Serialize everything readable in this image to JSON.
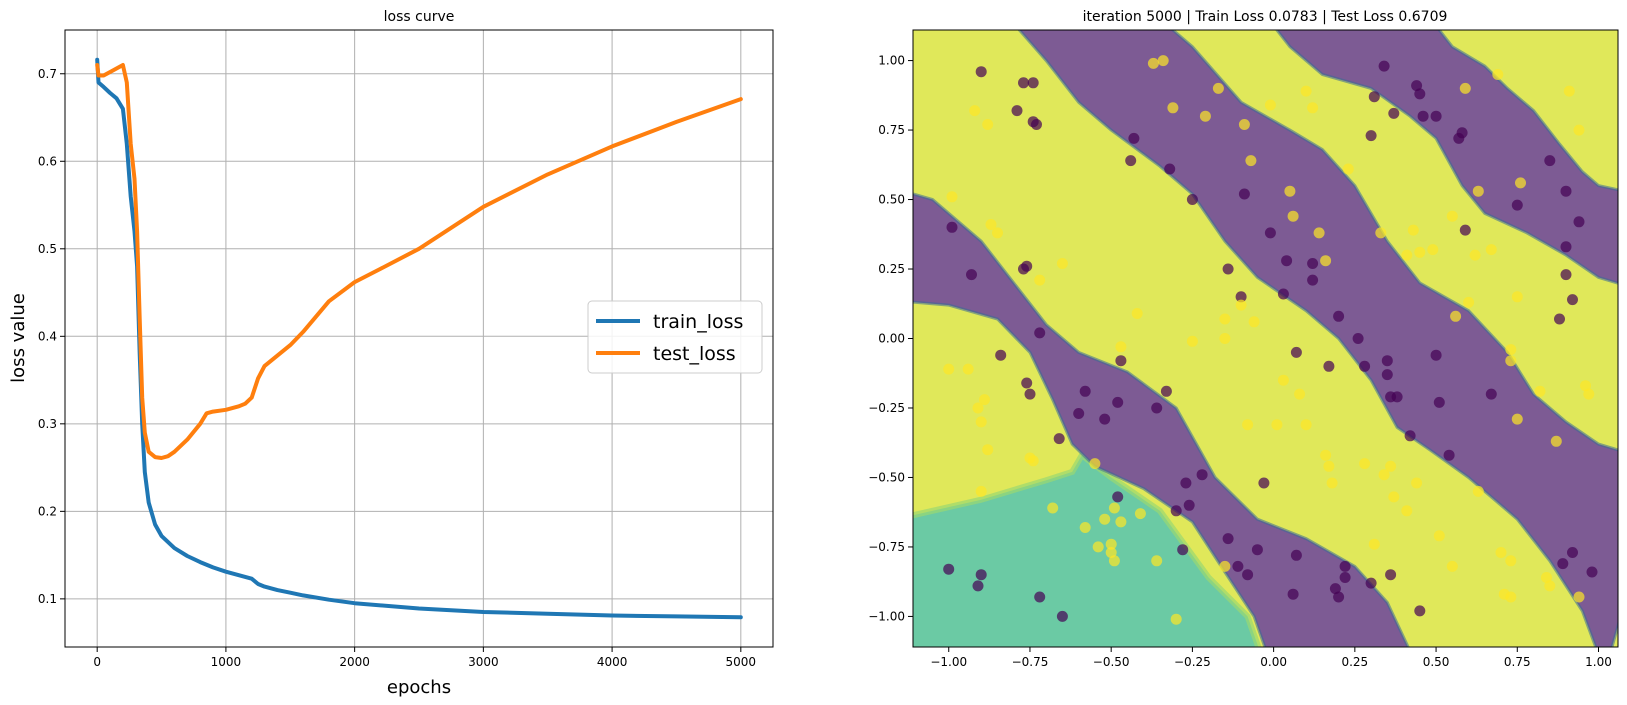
{
  "chart_data": [
    {
      "type": "line",
      "title": "loss curve",
      "xlabel": "epochs",
      "ylabel": "loss value",
      "xlim": [
        -250,
        5250
      ],
      "ylim": [
        0.045,
        0.75
      ],
      "xticks": [
        0,
        1000,
        2000,
        3000,
        4000,
        5000
      ],
      "yticks": [
        0.1,
        0.2,
        0.3,
        0.4,
        0.5,
        0.6,
        0.7
      ],
      "grid": true,
      "legend": "center-right",
      "series": [
        {
          "name": "train_loss",
          "color": "#1f77b4",
          "x": [
            0,
            10,
            50,
            100,
            150,
            200,
            230,
            260,
            290,
            310,
            330,
            350,
            370,
            400,
            450,
            500,
            600,
            700,
            800,
            900,
            1000,
            1100,
            1200,
            1250,
            1300,
            1400,
            1500,
            1600,
            1800,
            2000,
            2500,
            3000,
            3500,
            4000,
            4500,
            5000
          ],
          "y": [
            0.716,
            0.69,
            0.685,
            0.678,
            0.672,
            0.66,
            0.62,
            0.56,
            0.52,
            0.48,
            0.38,
            0.3,
            0.245,
            0.21,
            0.185,
            0.172,
            0.158,
            0.149,
            0.142,
            0.136,
            0.131,
            0.127,
            0.123,
            0.117,
            0.114,
            0.11,
            0.107,
            0.104,
            0.099,
            0.095,
            0.089,
            0.085,
            0.083,
            0.081,
            0.08,
            0.079
          ]
        },
        {
          "name": "test_loss",
          "color": "#ff7f0e",
          "x": [
            0,
            10,
            50,
            100,
            150,
            200,
            230,
            260,
            290,
            310,
            330,
            350,
            370,
            400,
            450,
            500,
            550,
            600,
            700,
            800,
            850,
            900,
            1000,
            1100,
            1150,
            1200,
            1250,
            1300,
            1400,
            1500,
            1600,
            1800,
            2000,
            2200,
            2500,
            3000,
            3500,
            4000,
            4500,
            5000
          ],
          "y": [
            0.71,
            0.698,
            0.698,
            0.702,
            0.706,
            0.71,
            0.69,
            0.62,
            0.58,
            0.52,
            0.42,
            0.33,
            0.29,
            0.268,
            0.262,
            0.261,
            0.263,
            0.268,
            0.282,
            0.3,
            0.312,
            0.314,
            0.316,
            0.32,
            0.323,
            0.33,
            0.352,
            0.366,
            0.378,
            0.39,
            0.405,
            0.44,
            0.462,
            0.477,
            0.5,
            0.548,
            0.585,
            0.617,
            0.645,
            0.671
          ]
        }
      ]
    },
    {
      "type": "scatter",
      "title": "iteration 5000 | Train Loss 0.0783 | Test Loss 0.6709",
      "xlabel": "",
      "ylabel": "",
      "xlim": [
        -1.11,
        1.06
      ],
      "ylim": [
        -1.11,
        1.11
      ],
      "xticks": [
        -1.0,
        -0.75,
        -0.5,
        -0.25,
        0.0,
        0.25,
        0.5,
        0.75,
        1.0
      ],
      "xtick_labels": [
        "−1.00",
        "−0.75",
        "−0.50",
        "−0.25",
        "0.00",
        "0.25",
        "0.50",
        "0.75",
        "1.00"
      ],
      "yticks": [
        -1.0,
        -0.75,
        -0.5,
        -0.25,
        0.0,
        0.25,
        0.5,
        0.75,
        1.0
      ],
      "ytick_labels": [
        "−1.00",
        "−0.75",
        "−0.50",
        "−0.25",
        "0.00",
        "0.25",
        "0.50",
        "0.75",
        "1.00"
      ],
      "grid": false,
      "region_colors": {
        "class_0": "#7d5b94",
        "class_1": "#e0e85a",
        "mid": "#6bcaa4",
        "edge_dark": "#3b6c96",
        "edge_mid": "#39b49b",
        "edge_light": "#9ad870"
      },
      "point_colors": {
        "class_0": "#440154",
        "class_1": "#fde725"
      },
      "point_alpha": 0.7,
      "points": [
        [
          -0.9,
          0.96,
          0
        ],
        [
          -0.77,
          0.92,
          0
        ],
        [
          -0.74,
          0.92,
          0
        ],
        [
          -0.79,
          0.82,
          0
        ],
        [
          -0.74,
          0.78,
          0
        ],
        [
          -0.73,
          0.77,
          0
        ],
        [
          -0.43,
          0.72,
          0
        ],
        [
          -0.44,
          0.64,
          0
        ],
        [
          -0.32,
          0.61,
          0
        ],
        [
          -0.25,
          0.5,
          0
        ],
        [
          0.31,
          0.87,
          0
        ],
        [
          0.34,
          0.98,
          0
        ],
        [
          0.3,
          0.73,
          0
        ],
        [
          0.37,
          0.81,
          0
        ],
        [
          0.44,
          0.91,
          0
        ],
        [
          0.45,
          0.88,
          0
        ],
        [
          0.46,
          0.8,
          0
        ],
        [
          0.5,
          0.8,
          0
        ],
        [
          0.57,
          0.72,
          0
        ],
        [
          0.58,
          0.74,
          0
        ],
        [
          0.59,
          0.39,
          0
        ],
        [
          0.75,
          0.48,
          0
        ],
        [
          0.85,
          0.64,
          0
        ],
        [
          0.9,
          0.53,
          0
        ],
        [
          0.94,
          0.42,
          0
        ],
        [
          0.9,
          0.33,
          0
        ],
        [
          0.9,
          0.23,
          0
        ],
        [
          0.92,
          0.14,
          0
        ],
        [
          0.88,
          0.07,
          0
        ],
        [
          -0.99,
          0.4,
          0
        ],
        [
          -0.93,
          0.23,
          0
        ],
        [
          -0.77,
          0.25,
          0
        ],
        [
          -0.76,
          0.26,
          0
        ],
        [
          -0.72,
          0.02,
          0
        ],
        [
          -0.84,
          -0.06,
          0
        ],
        [
          -0.76,
          -0.16,
          0
        ],
        [
          -0.75,
          -0.2,
          0
        ],
        [
          -0.58,
          -0.19,
          0
        ],
        [
          -0.6,
          -0.27,
          0
        ],
        [
          -0.52,
          -0.29,
          0
        ],
        [
          -0.48,
          -0.23,
          0
        ],
        [
          -0.36,
          -0.25,
          0
        ],
        [
          -0.33,
          -0.19,
          0
        ],
        [
          -0.47,
          -0.08,
          0
        ],
        [
          -0.66,
          -0.36,
          0
        ],
        [
          -0.09,
          0.52,
          0
        ],
        [
          -0.01,
          0.38,
          0
        ],
        [
          0.04,
          0.28,
          0
        ],
        [
          0.03,
          0.16,
          0
        ],
        [
          -0.14,
          0.25,
          0
        ],
        [
          -0.1,
          0.15,
          0
        ],
        [
          0.12,
          0.27,
          0
        ],
        [
          0.12,
          0.21,
          0
        ],
        [
          0.2,
          0.08,
          0
        ],
        [
          0.26,
          0.0,
          0
        ],
        [
          0.07,
          -0.05,
          0
        ],
        [
          0.17,
          -0.1,
          0
        ],
        [
          0.28,
          -0.1,
          0
        ],
        [
          0.35,
          -0.08,
          0
        ],
        [
          0.35,
          -0.13,
          0
        ],
        [
          0.36,
          -0.21,
          0
        ],
        [
          0.38,
          -0.21,
          0
        ],
        [
          0.5,
          -0.06,
          0
        ],
        [
          0.51,
          -0.23,
          0
        ],
        [
          0.42,
          -0.35,
          0
        ],
        [
          0.54,
          -0.42,
          0
        ],
        [
          0.67,
          -0.2,
          0
        ],
        [
          -0.48,
          -0.57,
          0
        ],
        [
          -0.3,
          -0.62,
          0
        ],
        [
          -0.27,
          -0.52,
          0
        ],
        [
          -0.26,
          -0.6,
          0
        ],
        [
          -0.22,
          -0.49,
          0
        ],
        [
          -0.03,
          -0.52,
          0
        ],
        [
          -0.14,
          -0.72,
          0
        ],
        [
          -0.11,
          -0.82,
          0
        ],
        [
          -0.08,
          -0.85,
          0
        ],
        [
          -0.05,
          -0.76,
          0
        ],
        [
          0.07,
          -0.78,
          0
        ],
        [
          0.06,
          -0.92,
          0
        ],
        [
          0.19,
          -0.9,
          0
        ],
        [
          0.2,
          -0.93,
          0
        ],
        [
          0.22,
          -0.82,
          0
        ],
        [
          0.22,
          -0.86,
          0
        ],
        [
          0.3,
          -0.88,
          0
        ],
        [
          0.36,
          -0.85,
          0
        ],
        [
          0.45,
          -0.98,
          0
        ],
        [
          -0.28,
          -0.76,
          0
        ],
        [
          -1.0,
          -0.83,
          0
        ],
        [
          -0.9,
          -0.85,
          0
        ],
        [
          -0.91,
          -0.89,
          0
        ],
        [
          -0.72,
          -0.93,
          0
        ],
        [
          -0.65,
          -1.0,
          0
        ],
        [
          0.89,
          -0.81,
          0
        ],
        [
          0.92,
          -0.77,
          0
        ],
        [
          0.98,
          -0.84,
          0
        ],
        [
          -0.37,
          0.99,
          1
        ],
        [
          -0.34,
          1.0,
          1
        ],
        [
          -0.31,
          0.83,
          1
        ],
        [
          -0.21,
          0.8,
          1
        ],
        [
          -0.17,
          0.9,
          1
        ],
        [
          -0.09,
          0.77,
          1
        ],
        [
          -0.07,
          0.64,
          1
        ],
        [
          -0.01,
          0.84,
          1
        ],
        [
          0.1,
          0.89,
          1
        ],
        [
          0.12,
          0.83,
          1
        ],
        [
          0.23,
          0.61,
          1
        ],
        [
          0.05,
          0.53,
          1
        ],
        [
          0.06,
          0.44,
          1
        ],
        [
          0.69,
          0.95,
          1
        ],
        [
          0.91,
          0.89,
          1
        ],
        [
          0.94,
          0.75,
          1
        ],
        [
          0.59,
          0.9,
          1
        ],
        [
          0.76,
          0.56,
          1
        ],
        [
          0.63,
          0.53,
          1
        ],
        [
          0.55,
          0.44,
          1
        ],
        [
          0.67,
          0.32,
          1
        ],
        [
          0.62,
          0.3,
          1
        ],
        [
          0.75,
          0.15,
          1
        ],
        [
          0.6,
          0.13,
          1
        ],
        [
          0.56,
          0.08,
          1
        ],
        [
          0.43,
          0.39,
          1
        ],
        [
          0.33,
          0.38,
          1
        ],
        [
          0.41,
          0.3,
          1
        ],
        [
          0.45,
          0.31,
          1
        ],
        [
          0.49,
          0.32,
          1
        ],
        [
          0.73,
          -0.04,
          1
        ],
        [
          0.73,
          -0.08,
          1
        ],
        [
          0.82,
          -0.19,
          1
        ],
        [
          0.96,
          -0.17,
          1
        ],
        [
          0.97,
          -0.2,
          1
        ],
        [
          0.75,
          -0.29,
          1
        ],
        [
          0.87,
          -0.37,
          1
        ],
        [
          0.63,
          -0.55,
          1
        ],
        [
          -0.92,
          0.82,
          1
        ],
        [
          -0.88,
          0.77,
          1
        ],
        [
          -0.99,
          0.51,
          1
        ],
        [
          -0.87,
          0.41,
          1
        ],
        [
          -0.85,
          0.38,
          1
        ],
        [
          -0.72,
          0.21,
          1
        ],
        [
          -0.65,
          0.27,
          1
        ],
        [
          -0.47,
          -0.03,
          1
        ],
        [
          -0.42,
          0.09,
          1
        ],
        [
          -0.25,
          -0.01,
          1
        ],
        [
          -0.15,
          -0.0,
          1
        ],
        [
          -0.15,
          0.07,
          1
        ],
        [
          -0.1,
          0.12,
          1
        ],
        [
          -0.06,
          0.06,
          1
        ],
        [
          0.16,
          0.28,
          1
        ],
        [
          0.14,
          0.38,
          1
        ],
        [
          -1.0,
          -0.11,
          1
        ],
        [
          -0.94,
          -0.11,
          1
        ],
        [
          -0.89,
          -0.22,
          1
        ],
        [
          -0.91,
          -0.25,
          1
        ],
        [
          -0.9,
          -0.3,
          1
        ],
        [
          -0.88,
          -0.4,
          1
        ],
        [
          -0.75,
          -0.43,
          1
        ],
        [
          -0.74,
          -0.44,
          1
        ],
        [
          -0.55,
          -0.45,
          1
        ],
        [
          -0.9,
          -0.55,
          1
        ],
        [
          -0.68,
          -0.61,
          1
        ],
        [
          -0.52,
          -0.65,
          1
        ],
        [
          -0.58,
          -0.68,
          1
        ],
        [
          -0.54,
          -0.75,
          1
        ],
        [
          -0.49,
          -0.61,
          1
        ],
        [
          -0.47,
          -0.66,
          1
        ],
        [
          -0.41,
          -0.63,
          1
        ],
        [
          -0.5,
          -0.74,
          1
        ],
        [
          -0.5,
          -0.77,
          1
        ],
        [
          -0.49,
          -0.8,
          1
        ],
        [
          -0.36,
          -0.8,
          1
        ],
        [
          -0.3,
          -1.01,
          1
        ],
        [
          -0.15,
          -0.82,
          1
        ],
        [
          0.16,
          -0.42,
          1
        ],
        [
          0.17,
          -0.46,
          1
        ],
        [
          0.18,
          -0.52,
          1
        ],
        [
          0.1,
          -0.31,
          1
        ],
        [
          0.01,
          -0.31,
          1
        ],
        [
          -0.08,
          -0.31,
          1
        ],
        [
          0.03,
          -0.15,
          1
        ],
        [
          0.08,
          -0.2,
          1
        ],
        [
          0.28,
          -0.45,
          1
        ],
        [
          0.34,
          -0.49,
          1
        ],
        [
          0.36,
          -0.46,
          1
        ],
        [
          0.37,
          -0.57,
          1
        ],
        [
          0.41,
          -0.62,
          1
        ],
        [
          0.44,
          -0.52,
          1
        ],
        [
          0.51,
          -0.71,
          1
        ],
        [
          0.55,
          -0.82,
          1
        ],
        [
          0.7,
          -0.77,
          1
        ],
        [
          0.73,
          -0.8,
          1
        ],
        [
          0.71,
          -0.92,
          1
        ],
        [
          0.73,
          -0.93,
          1
        ],
        [
          0.84,
          -0.86,
          1
        ],
        [
          0.85,
          -0.89,
          1
        ],
        [
          0.94,
          -0.93,
          1
        ],
        [
          0.31,
          -0.74,
          1
        ]
      ]
    }
  ]
}
